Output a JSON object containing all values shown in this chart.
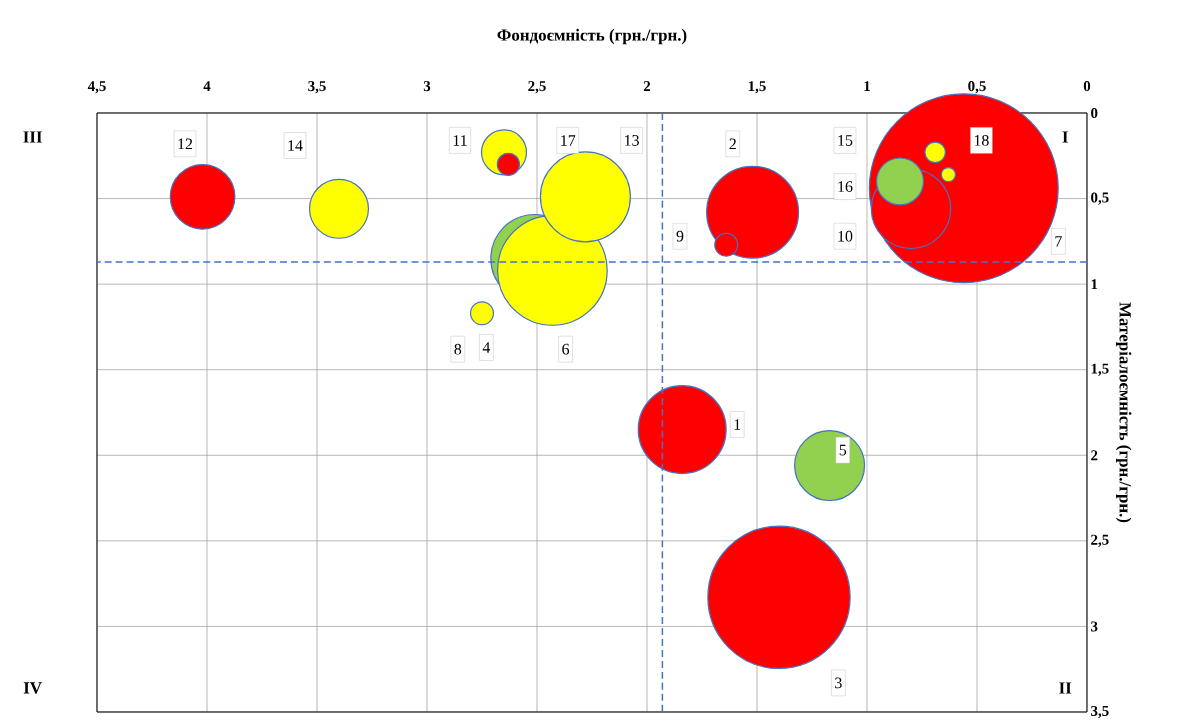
{
  "chart_data": {
    "type": "bubble",
    "xlabel": "Фондоємність (грн./грн.)",
    "ylabel": "Матеріалоємність (грн./грн.)",
    "x": [
      4.02,
      3.4,
      2.65,
      2.63,
      2.51,
      2.43,
      2.75,
      2.28,
      1.52,
      1.64,
      1.84,
      1.17,
      1.4,
      0.56,
      0.8,
      0.85,
      0.69,
      0.63
    ],
    "values": [
      0.49,
      0.56,
      0.23,
      0.3,
      0.85,
      0.92,
      1.17,
      0.49,
      0.58,
      0.77,
      1.85,
      2.06,
      2.83,
      0.44,
      0.56,
      0.4,
      0.23,
      0.36
    ],
    "sizes": [
      0.12,
      0.1,
      0.059,
      0.015,
      0.22,
      0.34,
      0.016,
      0.23,
      0.24,
      0.016,
      0.22,
      0.14,
      0.57,
      1,
      0.18,
      0.064,
      0.013,
      0.0065
    ],
    "colors": [
      "#ff0000",
      "#ffff00",
      "#ffff00",
      "#ff0000",
      "#92d050",
      "#ffff00",
      "#ffff00",
      "#ffff00",
      "#ff0000",
      "#ff0000",
      "#ff0000",
      "#92d050",
      "#ff0000",
      "#ff0000",
      "#ff0000",
      "#92d050",
      "#ffff00",
      "#ffff00"
    ],
    "xlim": [
      4.5,
      0
    ],
    "xticks": [
      {
        "value": 4.5,
        "label": "4,5"
      },
      4,
      {
        "value": 3.5,
        "label": "3,5"
      },
      3,
      {
        "value": 2.5,
        "label": "2,5"
      },
      2,
      {
        "value": 1.5,
        "label": "1,5"
      },
      1,
      {
        "value": 0.5,
        "label": "0,5"
      },
      0
    ],
    "ylim": [
      3.5,
      0
    ],
    "yticks": [
      0,
      {
        "value": 0.5,
        "label": "0,5"
      },
      1,
      {
        "value": 1.5,
        "label": "1,5"
      },
      2,
      {
        "value": 2.5,
        "label": "2,5"
      },
      3,
      {
        "value": 3.5,
        "label": "3,5"
      }
    ],
    "grid": true,
    "ref_lines": [
      {
        "axis": "x",
        "value": 1.93,
        "color": "#4472c4",
        "line_style": "dashed"
      },
      {
        "axis": "y",
        "value": 0.87,
        "color": "#4472c4",
        "line_style": "dashed"
      }
    ],
    "annotations": [
      {
        "text": "12",
        "x": 4.1,
        "y": 0.18
      },
      {
        "text": "14",
        "x": 3.6,
        "y": 0.19
      },
      {
        "text": "11",
        "x": 2.85,
        "y": 0.16
      },
      {
        "text": "17",
        "x": 2.36,
        "y": 0.16
      },
      {
        "text": "13",
        "x": 2.07,
        "y": 0.16
      },
      {
        "text": "2",
        "x": 1.61,
        "y": 0.18
      },
      {
        "text": "15",
        "x": 1.1,
        "y": 0.16
      },
      {
        "text": "18",
        "x": 0.48,
        "y": 0.16
      },
      {
        "text": "16",
        "x": 1.1,
        "y": 0.43
      },
      {
        "text": "9",
        "x": 1.85,
        "y": 0.72
      },
      {
        "text": "10",
        "x": 1.1,
        "y": 0.72
      },
      {
        "text": "7",
        "x": 0.13,
        "y": 0.75
      },
      {
        "text": "8",
        "x": 2.86,
        "y": 1.38
      },
      {
        "text": "4",
        "x": 2.73,
        "y": 1.37
      },
      {
        "text": "6",
        "x": 2.37,
        "y": 1.38
      },
      {
        "text": "1",
        "x": 1.59,
        "y": 1.82
      },
      {
        "text": "5",
        "x": 1.11,
        "y": 1.97
      },
      {
        "text": "3",
        "x": 1.13,
        "y": 3.33
      },
      "III",
      "I",
      "IV",
      "II"
    ]
  }
}
